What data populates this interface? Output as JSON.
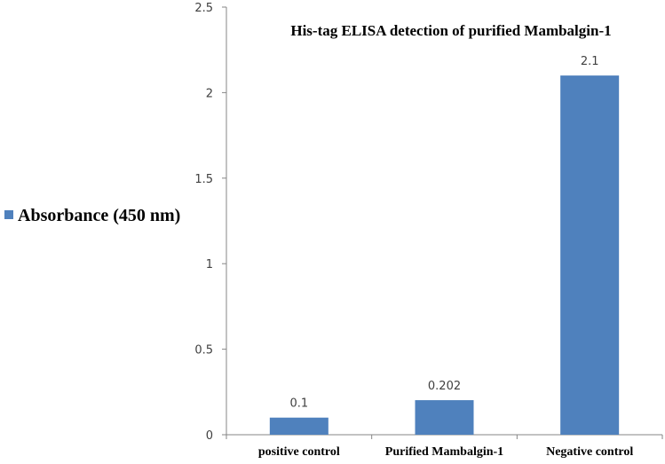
{
  "chart_data": {
    "type": "bar",
    "title": "His-tag ELISA detection of purified Mambalgin-1",
    "categories": [
      "positive control",
      "Purified Mambalgin-1",
      "Negative control"
    ],
    "series": [
      {
        "name": "Absorbance (450 nm)",
        "values": [
          0.1,
          0.202,
          2.1
        ],
        "color": "#4F81BD"
      }
    ],
    "data_labels": [
      "0.1",
      "0.202",
      "2.1"
    ],
    "y_ticks": [
      "0",
      "0.5",
      "1",
      "1.5",
      "2",
      "2.5"
    ],
    "ylim": [
      0,
      2.5
    ],
    "xlabel": "",
    "ylabel": "",
    "grid": false,
    "legend_position": "left"
  }
}
